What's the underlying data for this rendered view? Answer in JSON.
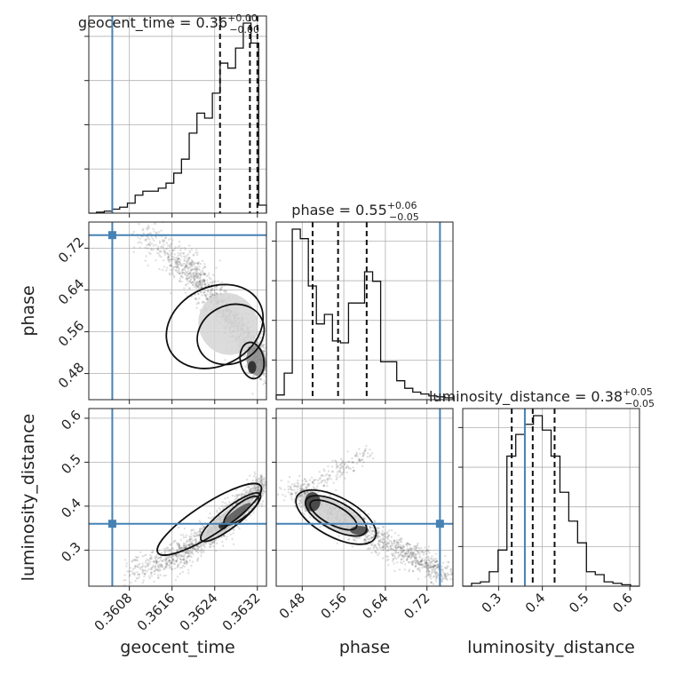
{
  "chart_data": {
    "type": "corner",
    "parameters": [
      "geocent_time",
      "phase",
      "luminosity_distance"
    ],
    "truths": {
      "geocent_time": 0.36048,
      "phase": 0.745,
      "luminosity_distance": 0.36
    },
    "ranges": {
      "geocent_time": [
        0.36004,
        0.36337
      ],
      "phase": [
        0.43,
        0.77
      ],
      "luminosity_distance": [
        0.218,
        0.622
      ]
    },
    "ticks": {
      "geocent_time": [
        "0.3608",
        "0.3616",
        "0.3624",
        "0.3632"
      ],
      "phase": [
        "0.48",
        "0.56",
        "0.64",
        "0.72"
      ],
      "luminosity_distance": [
        "0.3",
        "0.4",
        "0.5",
        "0.6"
      ]
    },
    "tick_values": {
      "geocent_time": [
        0.3608,
        0.3616,
        0.3624,
        0.3632
      ],
      "phase": [
        0.48,
        0.56,
        0.64,
        0.72
      ],
      "luminosity_distance": [
        0.3,
        0.4,
        0.5,
        0.6
      ]
    },
    "titles": [
      {
        "name": "geocent_time",
        "median": "0.36",
        "plus": "+0.00",
        "minus": "−0.00"
      },
      {
        "name": "phase",
        "median": "0.55",
        "plus": "+0.06",
        "minus": "−0.05"
      },
      {
        "name": "luminosity_distance",
        "median": "0.38",
        "plus": "+0.05",
        "minus": "−0.05"
      }
    ],
    "quantiles": {
      "geocent_time": [
        0.3625,
        0.36306,
        0.3632
      ],
      "phase": [
        0.5,
        0.549,
        0.604
      ],
      "luminosity_distance": [
        0.33,
        0.378,
        0.428
      ]
    },
    "histograms": {
      "geocent_time": [
        0,
        1,
        2,
        4,
        6,
        10,
        18,
        22,
        22,
        25,
        30,
        40,
        54,
        80,
        100,
        95,
        120,
        150,
        145,
        165,
        190,
        170,
        8
      ],
      "phase": [
        5,
        28,
        180,
        170,
        120,
        80,
        90,
        62,
        60,
        102,
        102,
        135,
        125,
        40,
        40,
        20,
        12,
        8,
        6,
        4,
        3,
        2
      ],
      "luminosity_distance": [
        0,
        2,
        3,
        10,
        25,
        90,
        105,
        112,
        118,
        108,
        90,
        65,
        45,
        30,
        10,
        8,
        3,
        2,
        1,
        0
      ]
    }
  }
}
